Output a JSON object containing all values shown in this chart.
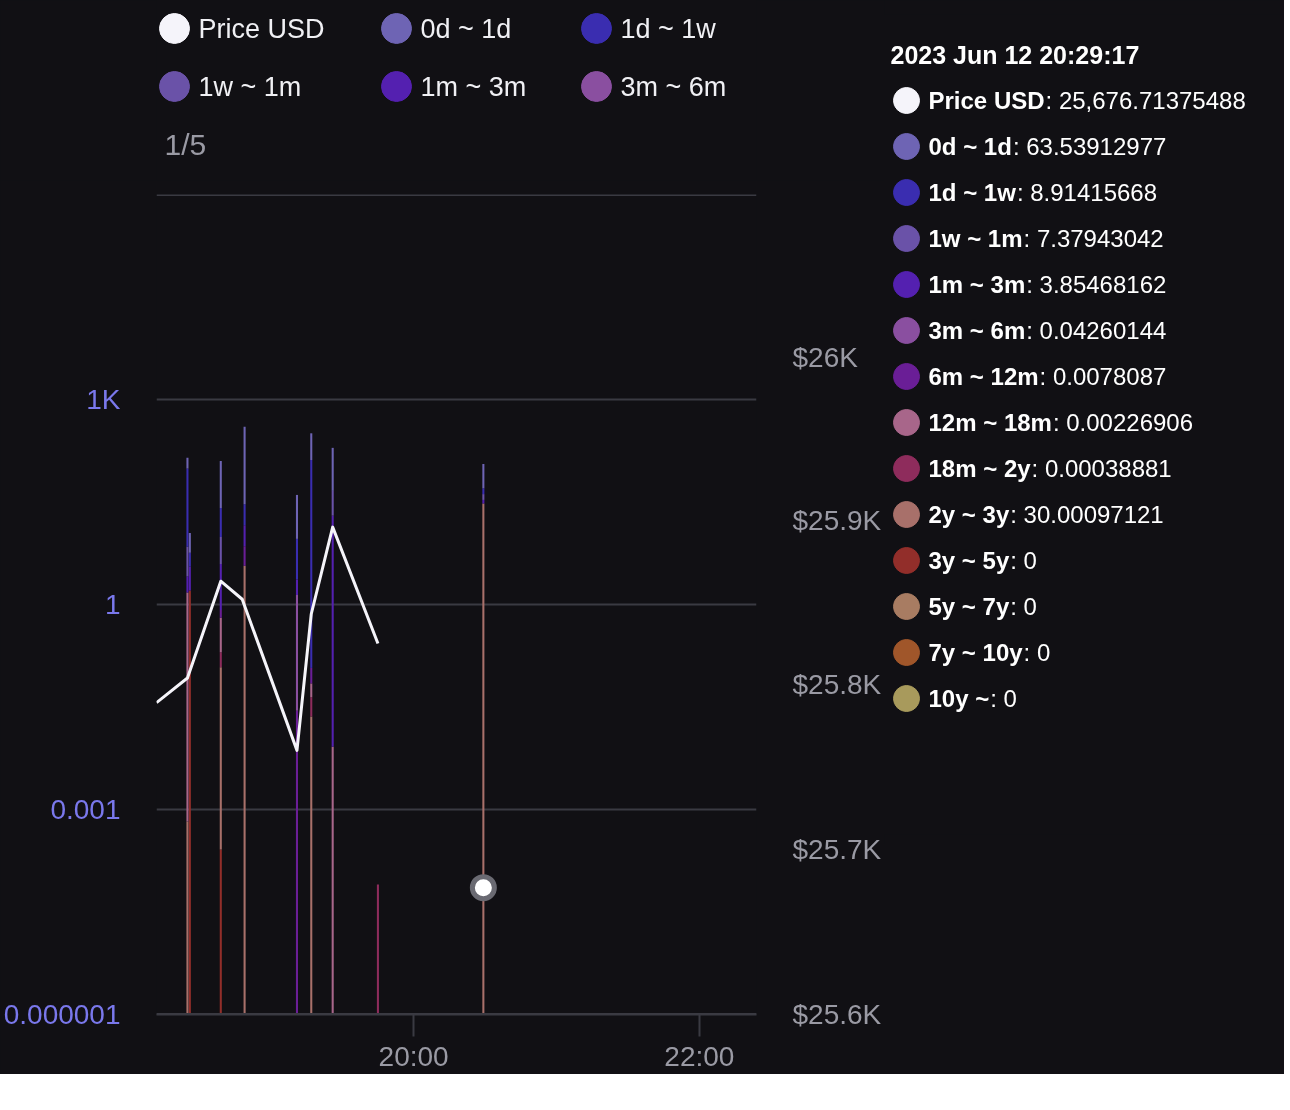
{
  "chart_data": {
    "type": "bar",
    "stacked": true,
    "log": "y",
    "grid": "y",
    "legend": "top",
    "x": [
      "2023-06-12T18:25",
      "2023-06-12T18:26",
      "2023-06-12T18:39",
      "2023-06-12T18:49",
      "2023-06-12T19:11",
      "2023-06-12T19:17",
      "2023-06-12T19:26",
      "2023-06-12T19:45",
      "2023-06-12T20:29:17"
    ],
    "xlim": [
      "2023-06-12T18:12",
      "2023-06-12T22:24"
    ],
    "xticks": [
      {
        "value": "2023-06-12T20:00",
        "label": "20:00"
      },
      {
        "value": "2023-06-12T22:00",
        "label": "22:00"
      }
    ],
    "ylim": [
      1e-06,
      1000000
    ],
    "yticks": [
      {
        "value": 1e-06,
        "label": "0.000001"
      },
      0.001,
      1,
      {
        "value": 1000,
        "label": "1K"
      },
      {
        "value": 1000000,
        "label": null
      }
    ],
    "y2lim": [
      25600,
      26100
    ],
    "y2ticks": [
      {
        "value": 25600,
        "label": "$25.6K"
      },
      {
        "value": 25700,
        "label": "$25.7K"
      },
      {
        "value": 25800,
        "label": "$25.8K"
      },
      {
        "value": 25900,
        "label": "$25.9K"
      },
      {
        "value": 26000,
        "label": "$26K"
      }
    ],
    "series": [
      {
        "name": "10y ~",
        "color": "#a89a5c",
        "values": [
          null,
          null,
          null,
          null,
          null,
          null,
          null,
          null,
          null
        ]
      },
      {
        "name": "7y ~ 10y",
        "color": "#a0562a",
        "values": [
          null,
          null,
          null,
          null,
          null,
          null,
          null,
          null,
          null
        ]
      },
      {
        "name": "5y ~ 7y",
        "color": "#a87c62",
        "values": [
          null,
          null,
          null,
          null,
          null,
          null,
          null,
          null,
          null
        ]
      },
      {
        "name": "3y ~ 5y",
        "color": "#922e2a",
        "values": [
          null,
          1.6,
          0.00026,
          null,
          null,
          null,
          null,
          null,
          null
        ]
      },
      {
        "name": "2y ~ 3y",
        "color": "#a8706a",
        "values": [
          0.00067,
          null,
          0.12,
          3.7,
          null,
          0.023,
          null,
          null,
          30.00097121
        ]
      },
      {
        "name": "18m ~ 2y",
        "color": "#8e2c5c",
        "values": [
          null,
          null,
          0.08,
          null,
          null,
          0.021,
          null,
          8e-05,
          0.00038881
        ]
      },
      {
        "name": "12m ~ 18m",
        "color": "#a8668a",
        "values": [
          1.5,
          null,
          0.44,
          null,
          null,
          0.026,
          0.0083,
          null,
          0.00226906
        ]
      },
      {
        "name": "6m ~ 12m",
        "color": "#6a1e96",
        "values": [
          null,
          null,
          0.19,
          3.4,
          0.028,
          0.048,
          null,
          null,
          0.0078087
        ]
      },
      {
        "name": "3m ~ 6m",
        "color": "#8a4fa0",
        "values": [
          null,
          null,
          null,
          null,
          1.35,
          null,
          null,
          null,
          0.04260144
        ]
      },
      {
        "name": "1m ~ 3m",
        "color": "#5420b0",
        "values": [
          1.1,
          2.0,
          3.1,
          7.3,
          0.95,
          null,
          20,
          null,
          3.85468162
        ]
      },
      {
        "name": "1w ~ 1m",
        "color": "#6a52a8",
        "values": [
          4.4,
          null,
          5.8,
          null,
          null,
          null,
          26,
          null,
          7.37943042
        ]
      },
      {
        "name": "1d ~ 1w",
        "color": "#3a2db0",
        "values": [
          91,
          2.1,
          16,
          15,
          6.8,
          130,
          null,
          null,
          8.91415668
        ]
      },
      {
        "name": "0d ~ 1d",
        "color": "#6e64b4",
        "values": [
          43,
          5.4,
          100,
          370,
          31,
          190,
          150,
          null,
          63.53912977
        ]
      },
      {
        "name": "Price USD",
        "type": "line",
        "axis": "y2",
        "color": "#f5f4fa",
        "x": [
          "2023-06-12T18:12",
          "2023-06-12T18:25",
          "2023-06-12T18:39",
          "2023-06-12T18:48",
          "2023-06-12T19:11",
          "2023-06-12T19:17",
          "2023-06-12T19:26",
          "2023-06-12T19:45"
        ],
        "values": [
          25789,
          25804,
          25863,
          25852,
          25760,
          25843,
          25896,
          25825
        ]
      },
      {
        "type": "scatter",
        "axis": "y2",
        "marker": "circle",
        "color": "#ffffff",
        "x": [
          "2023-06-12T20:29:17"
        ],
        "values": [
          25676.71375488
        ]
      }
    ],
    "annotations": [
      "1/5",
      "2023 Jun 12 20:29:17",
      ": 25,676.71375488",
      ": 63.53912977",
      ": 8.91415668",
      ": 7.37943042",
      ": 3.85468162",
      ": 0.04260144",
      ": 0.0078087",
      ": 0.00226906",
      ": 0.00038881",
      ": 30.00097121",
      ": 0",
      ": 0",
      ": 0",
      ": 0"
    ]
  }
}
